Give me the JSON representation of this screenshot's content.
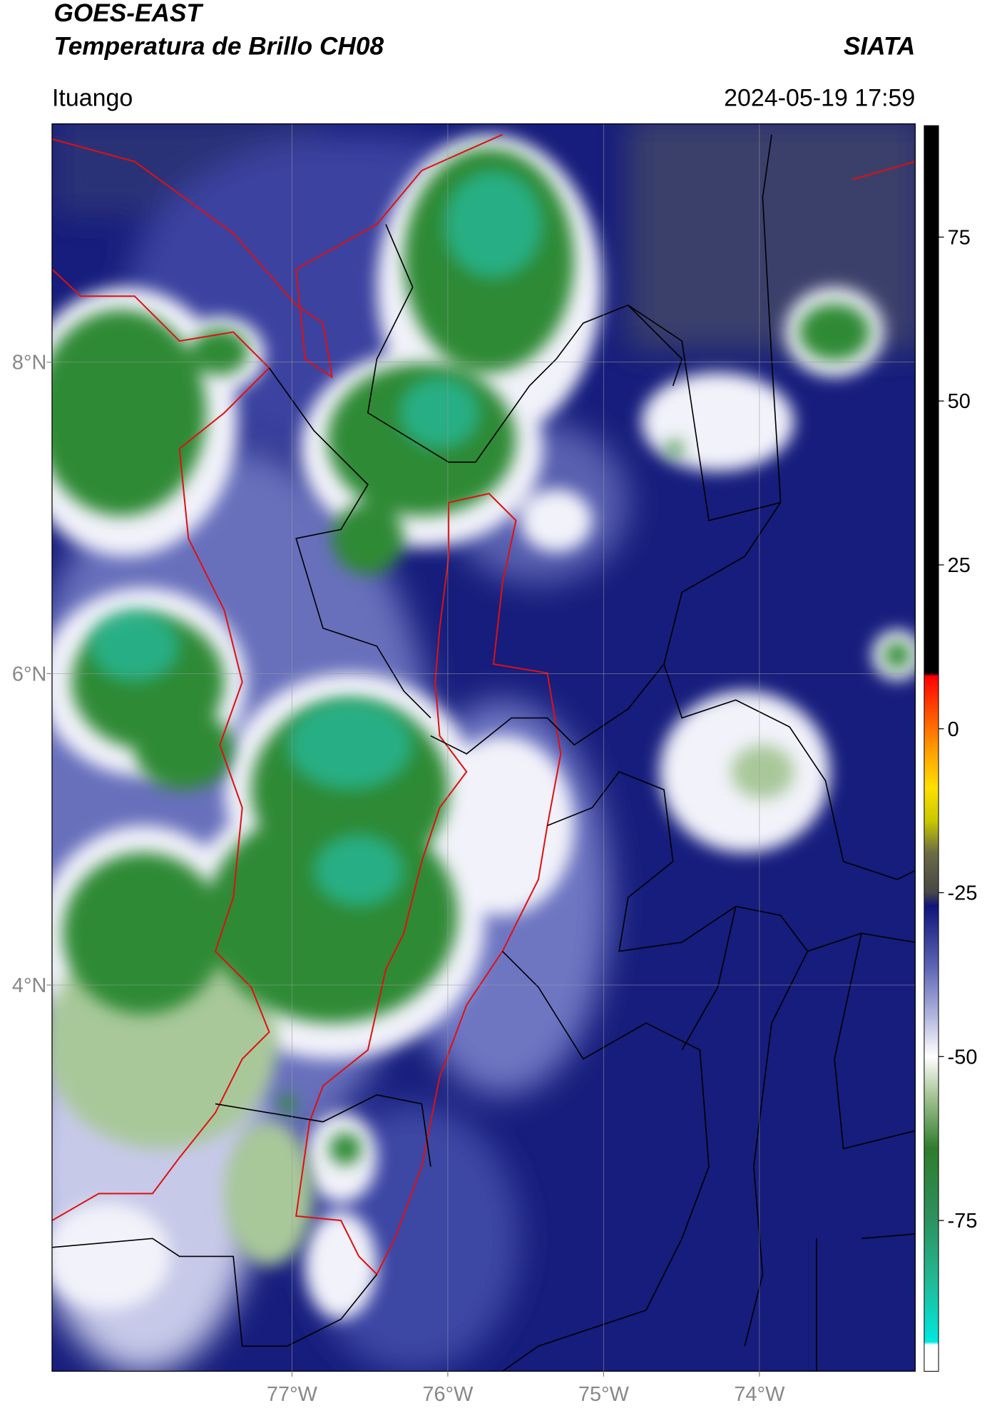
{
  "header": {
    "title": "GOES-EAST",
    "subtitle": "Temperatura de Brillo CH08",
    "brand": "SIATA",
    "location": "Ituango",
    "timestamp": "2024-05-19 17:59"
  },
  "map": {
    "xlim": [
      -78.54,
      -73.0
    ],
    "ylim": [
      1.52,
      9.53
    ],
    "xticks": [
      {
        "value": -77,
        "label": "77°W"
      },
      {
        "value": -76,
        "label": "76°W"
      },
      {
        "value": -75,
        "label": "75°W"
      },
      {
        "value": -74,
        "label": "74°W"
      }
    ],
    "yticks": [
      {
        "value": 8,
        "label": "8°N"
      },
      {
        "value": 6,
        "label": "6°N"
      },
      {
        "value": 4,
        "label": "4°N"
      }
    ],
    "grid": true
  },
  "colorbar": {
    "lim": [
      -98,
      92
    ],
    "ticks": [
      -75,
      -50,
      -25,
      0,
      25,
      50,
      75
    ],
    "stops": [
      {
        "value": -98,
        "color": "#ffffff"
      },
      {
        "value": -94,
        "color": "#ffffff"
      },
      {
        "value": -93.5,
        "color": "#00e8e0"
      },
      {
        "value": -84,
        "color": "#22b894"
      },
      {
        "value": -74,
        "color": "#2e8f5a"
      },
      {
        "value": -64,
        "color": "#2f7d2c"
      },
      {
        "value": -56,
        "color": "#a6c496"
      },
      {
        "value": -50,
        "color": "#ffffff"
      },
      {
        "value": -44,
        "color": "#b4b8df"
      },
      {
        "value": -36,
        "color": "#5a62b2"
      },
      {
        "value": -27,
        "color": "#0f157a"
      },
      {
        "value": -25,
        "color": "#474747"
      },
      {
        "value": -19,
        "color": "#6b6b45"
      },
      {
        "value": -14,
        "color": "#c8c800"
      },
      {
        "value": -9,
        "color": "#ffe000"
      },
      {
        "value": -3,
        "color": "#ff9a00"
      },
      {
        "value": 4,
        "color": "#ff3a00"
      },
      {
        "value": 8,
        "color": "#ff0000"
      },
      {
        "value": 8.5,
        "color": "#000000"
      },
      {
        "value": 92,
        "color": "#000000"
      }
    ]
  }
}
